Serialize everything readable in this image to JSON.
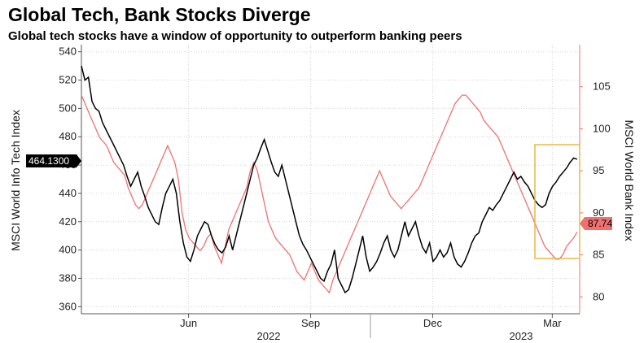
{
  "header": {
    "title": "Global Tech, Bank Stocks Diverge",
    "subtitle": "Global tech stocks have a window of opportunity to outperform banking peers"
  },
  "chart_data": {
    "type": "line",
    "x_tick_labels": [
      "Jun",
      "Sep",
      "Dec",
      "Mar"
    ],
    "x_year_labels": [
      "2022",
      "2023"
    ],
    "left_axis": {
      "label": "MSCI World Info Tech Index",
      "ylim": [
        355,
        545
      ],
      "ticks": [
        360,
        380,
        400,
        420,
        440,
        460,
        480,
        500,
        520,
        540
      ]
    },
    "right_axis": {
      "label": "MSCI World Bank Index",
      "ylim": [
        78,
        110
      ],
      "ticks": [
        80,
        85,
        90,
        95,
        100,
        105
      ]
    },
    "series": [
      {
        "name": "MSCI World Info Tech Index",
        "axis": "left",
        "color": "#000000",
        "last_value_label": "464.1300",
        "values": [
          530,
          520,
          522,
          505,
          500,
          498,
          490,
          485,
          480,
          475,
          470,
          465,
          460,
          452,
          445,
          450,
          455,
          445,
          438,
          430,
          425,
          420,
          418,
          430,
          440,
          445,
          450,
          440,
          420,
          405,
          395,
          392,
          400,
          410,
          415,
          420,
          418,
          410,
          404,
          400,
          398,
          402,
          410,
          400,
          410,
          420,
          430,
          440,
          450,
          460,
          465,
          472,
          478,
          470,
          462,
          455,
          452,
          460,
          450,
          440,
          430,
          420,
          410,
          404,
          400,
          395,
          390,
          385,
          380,
          378,
          385,
          390,
          400,
          380,
          375,
          370,
          372,
          380,
          390,
          400,
          410,
          395,
          385,
          388,
          392,
          398,
          405,
          410,
          400,
          395,
          400,
          410,
          420,
          410,
          415,
          420,
          410,
          402,
          398,
          405,
          392,
          395,
          400,
          395,
          398,
          405,
          395,
          390,
          388,
          392,
          398,
          405,
          410,
          412,
          420,
          425,
          430,
          428,
          432,
          435,
          440,
          445,
          450,
          455,
          450,
          452,
          448,
          445,
          440,
          435,
          432,
          430,
          432,
          440,
          445,
          448,
          452,
          455,
          458,
          462,
          465,
          464.13
        ]
      },
      {
        "name": "MSCI World Bank Index",
        "axis": "right",
        "color": "#f07070",
        "last_value_label": "87.74",
        "values": [
          104,
          103,
          102,
          101,
          100,
          99,
          98.5,
          98,
          97,
          96,
          95.5,
          95,
          94.5,
          93,
          92,
          91,
          90.5,
          91,
          92,
          93,
          94,
          95,
          96,
          97,
          98,
          97,
          96,
          94,
          90,
          88,
          87,
          86.5,
          86,
          85.5,
          86,
          87,
          87.5,
          86,
          85,
          84,
          86,
          88,
          89,
          90,
          91,
          92,
          93,
          95,
          96,
          95,
          93,
          91,
          89,
          88,
          87,
          86.5,
          86,
          85.5,
          85,
          84,
          83,
          82.5,
          82,
          83,
          84,
          83,
          82,
          81.5,
          81,
          80.5,
          82,
          83,
          84,
          85,
          86,
          87,
          88,
          89,
          90,
          91,
          92,
          93,
          94,
          95,
          94,
          93,
          92,
          91.5,
          91,
          90.5,
          91,
          91.5,
          92,
          92.5,
          93,
          94,
          95,
          96,
          97,
          98,
          99,
          100,
          101,
          102,
          103,
          103.5,
          104,
          104,
          103.5,
          103,
          102.5,
          102,
          101,
          100.5,
          100,
          99.5,
          99,
          98,
          97,
          96,
          95,
          94,
          93,
          92,
          91,
          90,
          89,
          88,
          87,
          86,
          85.5,
          85,
          84.5,
          84.5,
          85,
          86,
          86.5,
          87,
          87.74
        ]
      }
    ],
    "annotation": {
      "type": "highlight-box",
      "color": "#e8b84a"
    }
  }
}
